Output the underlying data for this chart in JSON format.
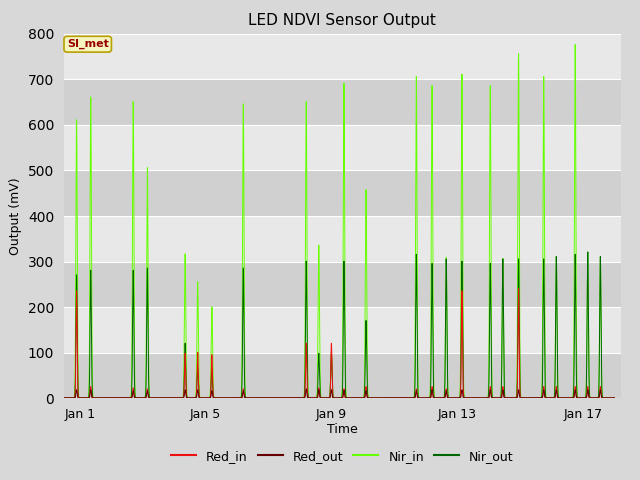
{
  "title": "LED NDVI Sensor Output",
  "xlabel": "Time",
  "ylabel": "Output (mV)",
  "ylim": [
    0,
    800
  ],
  "xlim_start": 0.5,
  "xlim_end": 18.2,
  "fig_bg_color": "#d8d8d8",
  "plot_bg_color_light": "#e8e8e8",
  "plot_bg_color_dark": "#d0d0d0",
  "grid_color": "#ffffff",
  "annotation_text": "SI_met",
  "annotation_bg": "#f5f5c0",
  "annotation_border": "#b8a000",
  "annotation_text_color": "#990000",
  "colors": {
    "Red_in": "#ee1111",
    "Red_out": "#660000",
    "Nir_in": "#66ff00",
    "Nir_out": "#006600"
  },
  "legend_labels": [
    "Red_in",
    "Red_out",
    "Nir_in",
    "Nir_out"
  ],
  "tick_dates": [
    1,
    5,
    9,
    13,
    17
  ],
  "tick_labels": [
    "Jan 1",
    "Jan 5",
    "Jan 9",
    "Jan 13",
    "Jan 17"
  ],
  "spike_times": [
    0.9,
    1.35,
    2.7,
    3.15,
    4.35,
    4.75,
    5.2,
    6.2,
    8.2,
    8.6,
    9.0,
    9.4,
    10.1,
    11.7,
    12.2,
    12.65,
    13.15,
    14.05,
    14.45,
    14.95,
    15.75,
    16.15,
    16.75,
    17.15,
    17.55
  ],
  "nir_in_h": [
    610,
    660,
    650,
    505,
    316,
    255,
    200,
    645,
    650,
    335,
    100,
    690,
    457,
    705,
    685,
    308,
    710,
    685,
    306,
    755,
    705,
    311,
    775,
    320,
    310
  ],
  "nir_out_h": [
    270,
    280,
    280,
    285,
    120,
    65,
    60,
    285,
    300,
    98,
    98,
    300,
    170,
    315,
    295,
    305,
    300,
    295,
    305,
    305,
    305,
    310,
    315,
    320,
    310
  ],
  "red_in_h": [
    235,
    25,
    22,
    20,
    98,
    100,
    95,
    20,
    120,
    22,
    120,
    20,
    25,
    20,
    25,
    20,
    235,
    25,
    25,
    240,
    25,
    25,
    25,
    25,
    25
  ],
  "red_out_h": [
    18,
    18,
    16,
    16,
    18,
    18,
    16,
    16,
    20,
    18,
    18,
    16,
    16,
    16,
    18,
    16,
    18,
    18,
    18,
    18,
    18,
    18,
    18,
    18,
    18
  ]
}
